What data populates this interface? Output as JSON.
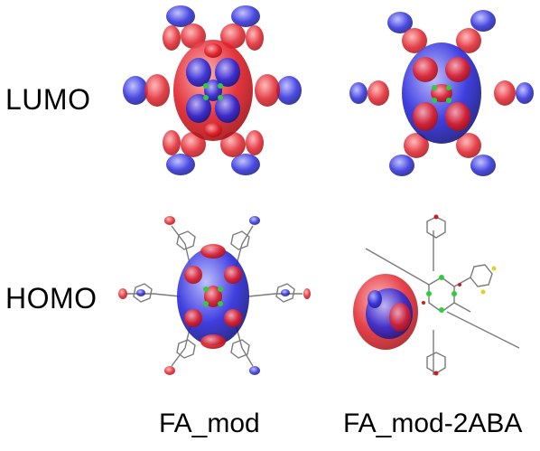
{
  "rows": [
    {
      "label": "LUMO"
    },
    {
      "label": "HOMO"
    }
  ],
  "columns": [
    {
      "label": "FA_mod"
    },
    {
      "label": "FA_mod-2ABA"
    }
  ],
  "colors": {
    "positive_lobe": "#e0202a",
    "negative_lobe": "#2a2adc",
    "bond": "#7a7a7a",
    "metal_atom": "#2ecc40",
    "oxygen": "#d11a1a",
    "nitrogen": "#2a2acf",
    "sulfur": "#e3d21a"
  }
}
